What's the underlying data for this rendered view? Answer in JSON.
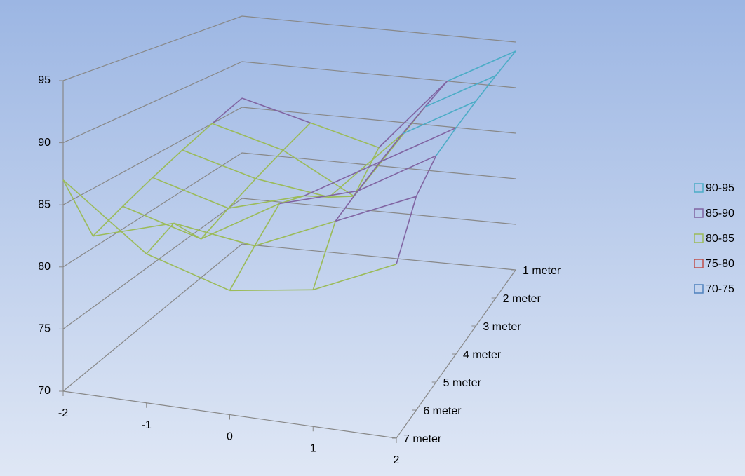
{
  "chart_data": {
    "type": "surface",
    "x": [
      -2,
      -1,
      0,
      1,
      2
    ],
    "xlim": [
      -2,
      2
    ],
    "xticks": [
      -2,
      -1,
      0,
      1,
      2
    ],
    "categories": [
      "1 meter",
      "2 meter",
      "3 meter",
      "4 meter",
      "5 meter",
      "6 meter",
      "7 meter"
    ],
    "z": [
      [
        86,
        84,
        82,
        90,
        94
      ],
      [
        85,
        83,
        79,
        89,
        93
      ],
      [
        84,
        82,
        81,
        88,
        92
      ],
      [
        83,
        81,
        83,
        87,
        91
      ],
      [
        82,
        80,
        84,
        86,
        90
      ],
      [
        81,
        83,
        82,
        85,
        88
      ],
      [
        87,
        82,
        80,
        81,
        84
      ]
    ],
    "zlim": [
      70,
      95
    ],
    "zticks": [
      70,
      75,
      80,
      85,
      90,
      95
    ],
    "legend": [
      {
        "name": "90-95",
        "color": "#4bacc6"
      },
      {
        "name": "85-90",
        "color": "#8064a2"
      },
      {
        "name": "80-85",
        "color": "#9bbb59"
      },
      {
        "name": "75-80",
        "color": "#c0504d"
      },
      {
        "name": "70-75",
        "color": "#4f81bd"
      }
    ]
  }
}
